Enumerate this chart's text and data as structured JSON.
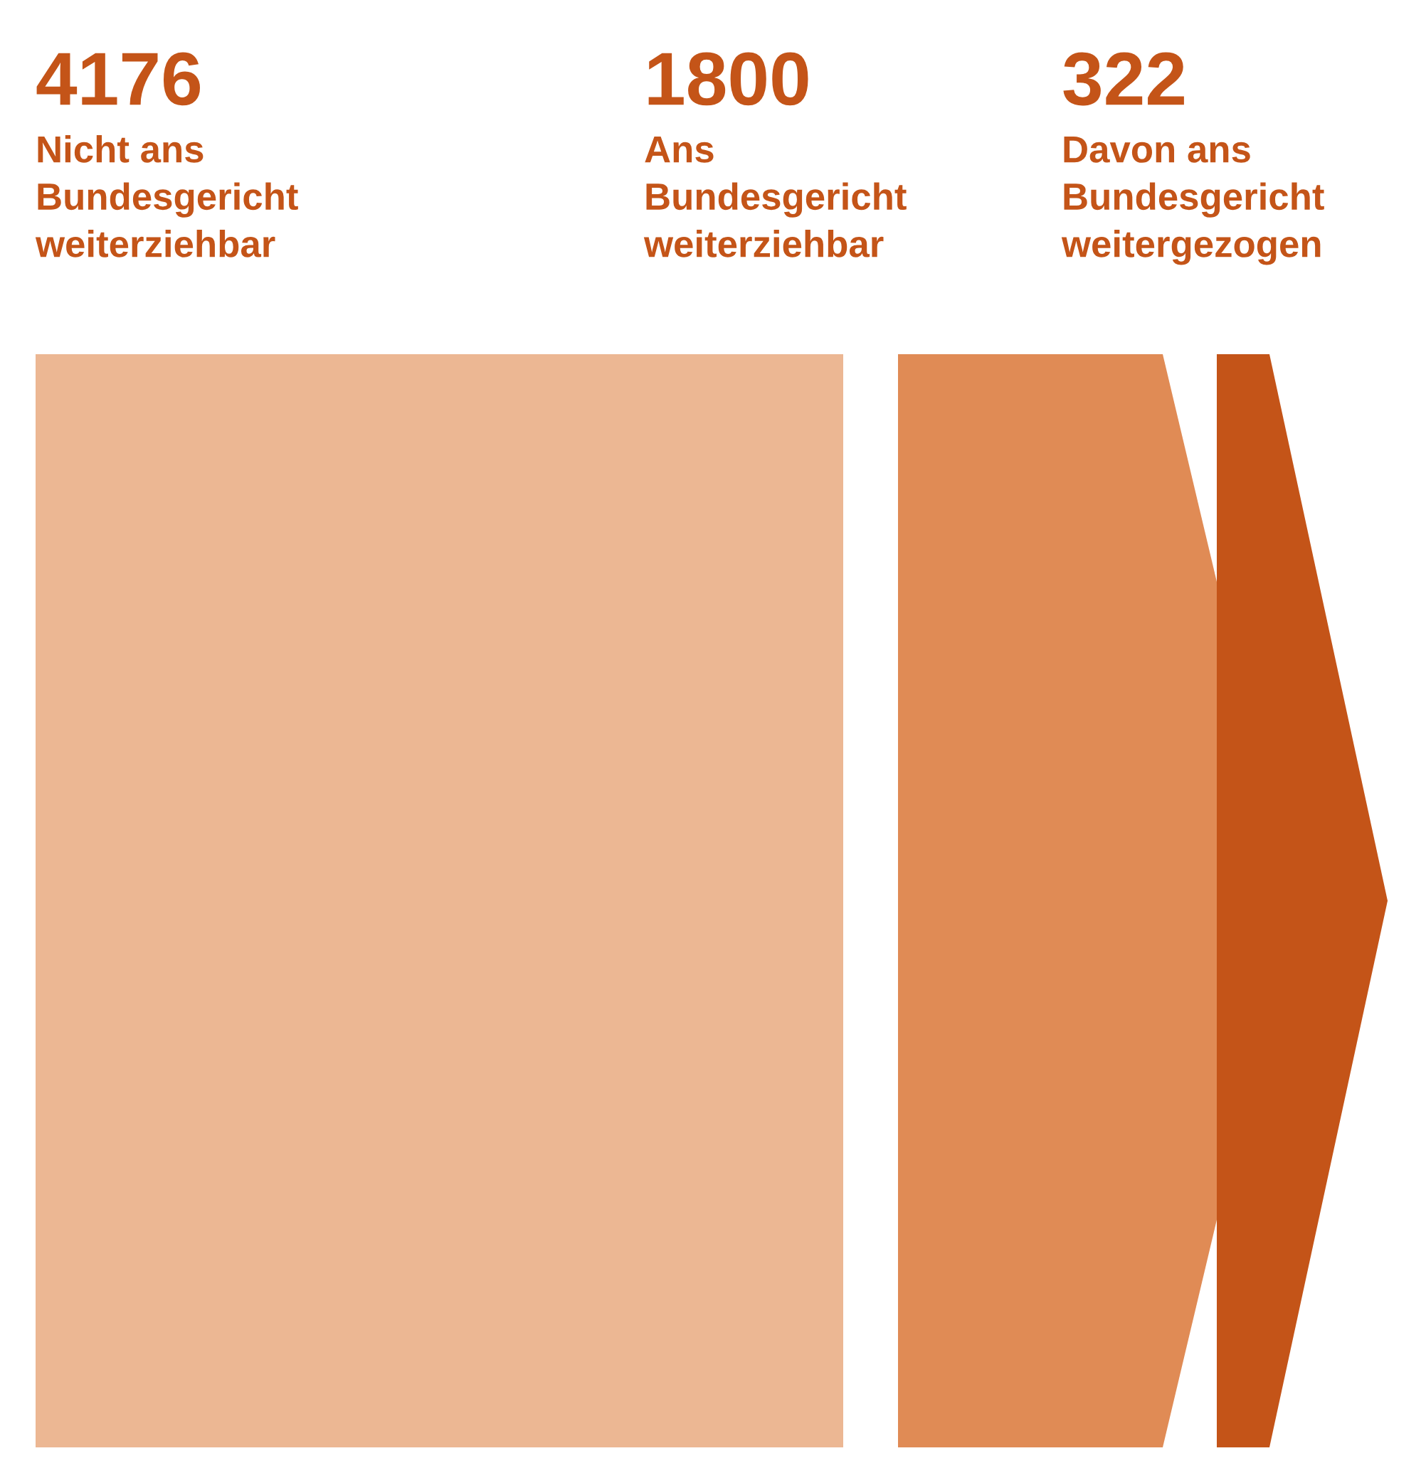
{
  "chart_data": {
    "type": "other",
    "categories": [
      "Nicht ans\nBundesgericht\nweiterziehbar",
      "Ans\nBundesgericht\nweiterziehbar",
      "Davon ans\nBundesgericht\nweitergezogen"
    ],
    "values": [
      4176,
      1800,
      322
    ],
    "colors": [
      "#ecb793",
      "#e08b55",
      "#c45418"
    ],
    "data_labels": true
  }
}
